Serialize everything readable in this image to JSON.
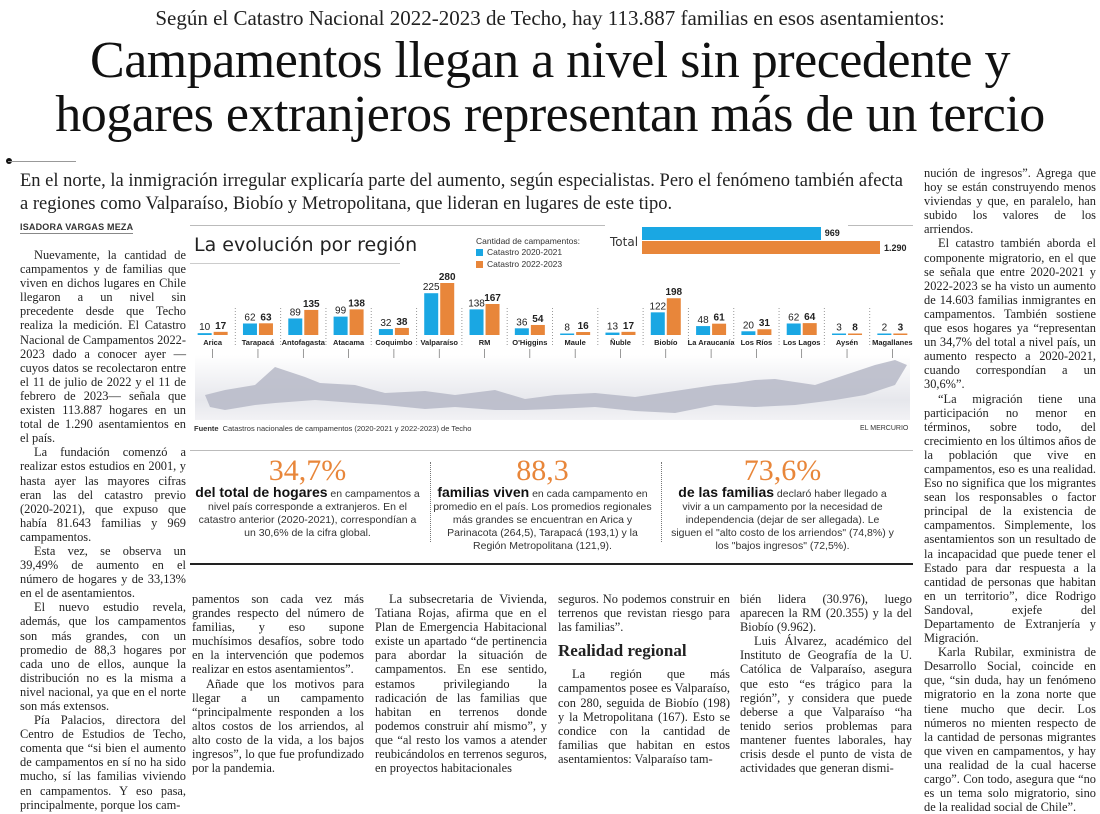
{
  "article": {
    "kicker": "Según el Catastro Nacional 2022-2023 de Techo, hay 113.887 familias en esos asentamientos:",
    "headline_line1": "Campamentos llegan a nivel sin precedente y",
    "headline_line2": "hogares extranjeros representan más de un tercio",
    "deck": "En el norte, la inmigración irregular explicaría parte del aumento, según especialistas. Pero el fenómeno también afecta a regiones como Valparaíso, Biobío y Metropolitana, que lideran en lugares de este tipo.",
    "byline": "ISADORA VARGAS MEZA",
    "col1": [
      "Nuevamente, la cantidad de campamentos y de familias que viven en dichos lugares en Chile llegaron a un nivel sin precedente desde que Techo realiza la medición. El Catastro Nacional de Campamentos 2022-2023 dado a conocer ayer —cuyos datos se recolectaron entre el 11 de julio de 2022 y el 11 de febrero de 2023— señala que existen 113.887 hogares en un total de 1.290 asentamientos en el país.",
      "La fundación comenzó a realizar estos estudios en 2001, y hasta ayer las mayores cifras eran las del catastro previo (2020-2021), que expuso que había 81.643 familias y 969 campamentos.",
      "Esta vez, se observa un 39,49% de aumento en el número de hogares y de 33,13% en el de asentamientos.",
      "El nuevo estudio revela, además, que los campamentos son más grandes, con un promedio de 88,3 hogares por cada uno de ellos, aunque la distribución no es la misma a nivel nacional, ya que en el norte son más extensos.",
      "Pía Palacios, directora del Centro de Estudios de Techo, comenta que “si bien el aumento de campamentos en sí no ha sido mucho, sí las familias viviendo en campamentos. Y eso pasa, principalmente, porque los cam-"
    ],
    "col2": [
      "pamentos son cada vez más grandes respecto del número de familias, y eso supone muchísimos desafíos, sobre todo en la intervención que podemos realizar en estos asentamientos”.",
      "Añade que los motivos para llegar a un campamento “principalmente responden a los altos costos de los arriendos, al alto costo de la vida, a los bajos ingresos”, lo que fue profundizado por la pandemia."
    ],
    "col3": [
      "La subsecretaria de Vivienda, Tatiana Rojas, afirma que en el Plan de Emergencia Habitacional existe un apartado “de pertinencia para abordar la situación de campamentos. En ese sentido, estamos privilegiando la radicación de las familias que habitan en terrenos donde podemos construir ahí mismo”, y que “al resto los vamos a atender reubicándolos en terrenos seguros, en proyectos habitacionales"
    ],
    "col4_pre": "seguros. No podemos construir en terrenos que revistan riesgo para las familias”.",
    "col4_heading": "Realidad regional",
    "col4_post": "La región que más campamentos posee es Valparaíso, con 280, seguida de Biobío (198) y la Metropolitana (167). Esto se condice con la cantidad de familias que habitan en estos asentamientos: Valparaíso tam-",
    "col5": [
      "bién lidera (30.976), luego aparecen la RM (20.355) y la del Biobío (9.962).",
      "Luis Álvarez, académico del Instituto de Geografía de la U. Católica de Valparaíso, asegura que esto “es trágico para la región”, y considera que puede deberse a que Valparaíso “ha tenido serios problemas para mantener fuentes laborales, hay crisis desde el punto de vista de actividades que generan dismi-"
    ],
    "col6": [
      "nución de ingresos”. Agrega que hoy se están construyendo menos viviendas y que, en paralelo, han subido los valores de los arriendos.",
      "El catastro también aborda el componente migratorio, en el que se señala que entre 2020-2021 y 2022-2023 se ha visto un aumento de 14.603 familias inmigrantes en campamentos. También sostiene que esos hogares ya “representan un 34,7% del total a nivel país, un aumento respecto a 2020-2021, cuando correspondían a un 30,6%”.",
      "“La migración tiene una participación no menor en términos, sobre todo, del crecimiento en los últimos años de la población que vive en campamentos, eso es una realidad. Eso no significa que los migrantes sean los responsables o factor principal de la existencia de campamentos. Simplemente, los asentamientos son un resultado de la incapacidad que puede tener el Estado para dar respuesta a la cantidad de personas que habitan en un territorio”, dice Rodrigo Sandoval, exjefe del Departamento de Extranjería y Migración.",
      "Karla Rubilar, exministra de Desarrollo Social, coincide en que, “sin duda, hay un fenómeno migratorio en la zona norte que tiene mucho que decir. Los números no mienten respecto de la cantidad de personas migrantes que viven en campamentos, y hay una realidad de la cual hacerse cargo”. Con todo, asegura que “no es un tema solo migratorio, sino de la realidad social de Chile”."
    ]
  },
  "infographic": {
    "title": "La evolución por región",
    "total_label": "Total",
    "source_label": "Fuente",
    "source_text": "Catastros nacionales de campamentos (2020-2021 y 2022-2023) de Techo",
    "brand": "EL MERCURIO",
    "colors": {
      "series_2020": "#1aa7e3",
      "series_2022": "#e8863a",
      "accent": "#e8863a"
    }
  },
  "chart_data": {
    "type": "bar",
    "title": "La evolución por región",
    "legend_title": "Cantidad de campamentos:",
    "categories": [
      "Arica",
      "Tarapacá",
      "Antofagasta",
      "Atacama",
      "Coquimbo",
      "Valparaíso",
      "RM",
      "O'Higgins",
      "Maule",
      "Ñuble",
      "Biobío",
      "La Araucanía",
      "Los Ríos",
      "Los Lagos",
      "Aysén",
      "Magallanes"
    ],
    "series": [
      {
        "name": "Catastro 2020-2021",
        "values": [
          10,
          62,
          89,
          99,
          32,
          225,
          138,
          36,
          8,
          13,
          122,
          48,
          20,
          62,
          3,
          2
        ]
      },
      {
        "name": "Catastro 2022-2023",
        "values": [
          17,
          63,
          135,
          138,
          38,
          280,
          167,
          54,
          16,
          17,
          198,
          61,
          31,
          64,
          8,
          3
        ]
      }
    ],
    "totals": [
      {
        "name": "Catastro 2020-2021",
        "value": 969,
        "label": "969"
      },
      {
        "name": "Catastro 2022-2023",
        "value": 1290,
        "label": "1.290"
      }
    ],
    "xlabel": "",
    "ylabel": "",
    "ylim": [
      0,
      280
    ],
    "grid": false,
    "legend": "top-center"
  },
  "stats": [
    {
      "big": "34,7%",
      "lead": "del total de hogares",
      "text": " en campamentos a nivel país corresponde a extranjeros. En el catastro anterior (2020-2021), correspondían a un 30,6% de la cifra global."
    },
    {
      "big": "88,3",
      "lead": "familias viven",
      "text": " en cada campamento en promedio en el país. Los promedios regionales más grandes se encuentran en Arica y Parinacota (264,5), Tarapacá (193,1) y la Región Metropolitana (121,9)."
    },
    {
      "big": "73,6%",
      "lead": "de las familias",
      "text": " declaró haber llegado a vivir a un campamento por la necesidad de independencia (dejar de ser allegada). Le siguen el \"alto costo de los arriendos\" (74,8%) y los \"bajos ingresos\" (72,5%)."
    }
  ]
}
